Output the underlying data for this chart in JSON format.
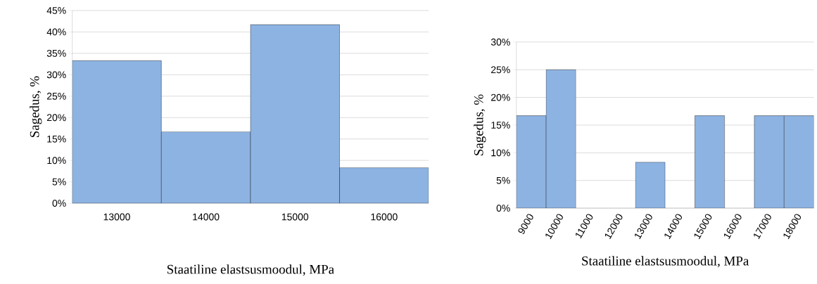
{
  "chart_data": [
    {
      "type": "bar",
      "xlabel": "Staatiline elastsusmoodul, MPa",
      "ylabel": "Sagedus, %",
      "categories": [
        "13000",
        "14000",
        "15000",
        "16000"
      ],
      "values": [
        33.3,
        16.7,
        41.7,
        8.3
      ],
      "color": "#8db3e2",
      "ylim": [
        0,
        45
      ],
      "yticks": [
        {
          "value": 0,
          "label": "0%"
        },
        {
          "value": 5,
          "label": "5%"
        },
        {
          "value": 10,
          "label": "10%"
        },
        {
          "value": 15,
          "label": "15%"
        },
        {
          "value": 20,
          "label": "20%"
        },
        {
          "value": 25,
          "label": "25%"
        },
        {
          "value": 30,
          "label": "30%"
        },
        {
          "value": 35,
          "label": "35%"
        },
        {
          "value": 40,
          "label": "40%"
        },
        {
          "value": 45,
          "label": "45%"
        }
      ],
      "grid": "y"
    },
    {
      "type": "bar",
      "xlabel": "Staatiline elastsusmoodul, MPa",
      "ylabel": "Sagedus, %",
      "categories": [
        "9000",
        "10000",
        "11000",
        "12000",
        "13000",
        "14000",
        "15000",
        "16000",
        "17000",
        "18000"
      ],
      "values": [
        16.7,
        25,
        0,
        0,
        8.3,
        0,
        16.7,
        0,
        16.7,
        16.7
      ],
      "color": "#8db3e2",
      "ylim": [
        0,
        30
      ],
      "yticks": [
        {
          "value": 0,
          "label": "0%"
        },
        {
          "value": 5,
          "label": "5%"
        },
        {
          "value": 10,
          "label": "10%"
        },
        {
          "value": 15,
          "label": "15%"
        },
        {
          "value": 20,
          "label": "20%"
        },
        {
          "value": 25,
          "label": "25%"
        },
        {
          "value": 30,
          "label": "30%"
        }
      ],
      "grid": "y"
    }
  ]
}
